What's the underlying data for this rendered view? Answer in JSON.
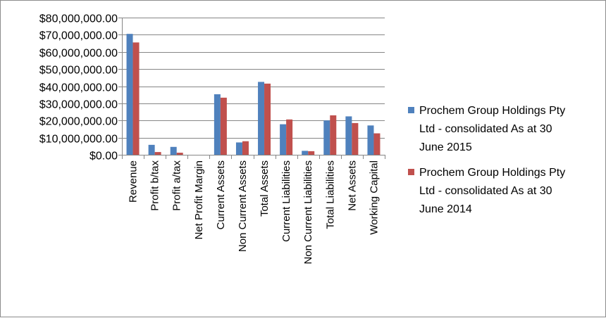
{
  "chart_data": {
    "type": "bar",
    "categories": [
      "Revenue",
      "Profit b/tax",
      "Profit a/tax",
      "Net Profit Margin",
      "Current Assets",
      "Non Current  Assets",
      "Total Assets",
      "Current Liabilities",
      "Non Current Liabilities",
      "Total Liabilities",
      "Net Assets",
      "Working Capital"
    ],
    "series": [
      {
        "name": "Prochem Group Holdings Pty Ltd - consolidated As at 30 June 2015",
        "legend_lines": [
          "Prochem Group Holdings Pty",
          "Ltd - consolidated As at 30",
          "June 2015"
        ],
        "color": "#4f81bd",
        "values": [
          70500000,
          5800000,
          4600000,
          0,
          35300000,
          7200000,
          42500000,
          17800000,
          2300000,
          20000000,
          22400000,
          17100000
        ]
      },
      {
        "name": "Prochem Group Holdings Pty Ltd - consolidated As at 30 June 2014",
        "legend_lines": [
          "Prochem Group Holdings Pty",
          "Ltd - consolidated As at 30",
          "June 2014"
        ],
        "color": "#c0504d",
        "values": [
          65500000,
          1600000,
          1200000,
          0,
          33300000,
          7900000,
          41500000,
          20600000,
          2100000,
          23000000,
          18500000,
          12500000
        ]
      }
    ],
    "ylim": [
      0,
      80000000
    ],
    "y_ticks": [
      {
        "value": 0,
        "label": "$0.00"
      },
      {
        "value": 10000000,
        "label": "$10,000,000.00"
      },
      {
        "value": 20000000,
        "label": "$20,000,000.00"
      },
      {
        "value": 30000000,
        "label": "$30,000,000.00"
      },
      {
        "value": 40000000,
        "label": "$40,000,000.00"
      },
      {
        "value": 50000000,
        "label": "$50,000,000.00"
      },
      {
        "value": 60000000,
        "label": "$60,000,000.00"
      },
      {
        "value": 70000000,
        "label": "$70,000,000.00"
      },
      {
        "value": 80000000,
        "label": "$80,000,000.00"
      }
    ],
    "grid": true,
    "legend_position": "right",
    "gridline_color": "#868686",
    "axis_color": "#868686"
  }
}
